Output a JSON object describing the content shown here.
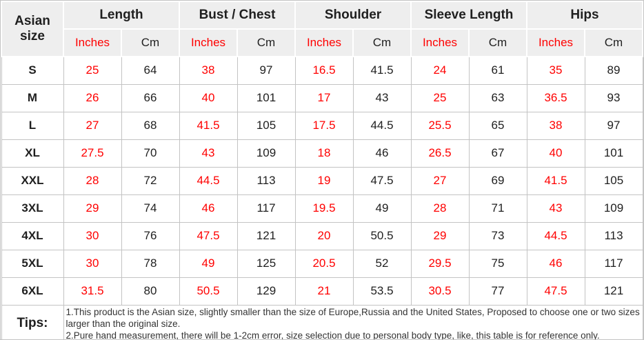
{
  "chart_data": {
    "type": "table",
    "corner_header": "Asian size",
    "column_groups": [
      "Length",
      "Bust / Chest",
      "Shoulder",
      "Sleeve Length",
      "Hips"
    ],
    "unit_labels": [
      "Inches",
      "Cm"
    ],
    "rows": [
      {
        "size": "S",
        "values": [
          25,
          64,
          38,
          97,
          16.5,
          41.5,
          24,
          61,
          35,
          89
        ]
      },
      {
        "size": "M",
        "values": [
          26,
          66,
          40,
          101,
          17,
          43,
          25,
          63,
          36.5,
          93
        ]
      },
      {
        "size": "L",
        "values": [
          27,
          68,
          41.5,
          105,
          17.5,
          44.5,
          25.5,
          65,
          38,
          97
        ]
      },
      {
        "size": "XL",
        "values": [
          27.5,
          70,
          43,
          109,
          18,
          46,
          26.5,
          67,
          40,
          101
        ]
      },
      {
        "size": "XXL",
        "values": [
          28,
          72,
          44.5,
          113,
          19,
          47.5,
          27,
          69,
          41.5,
          105
        ]
      },
      {
        "size": "3XL",
        "values": [
          29,
          74,
          46,
          117,
          19.5,
          49,
          28,
          71,
          43,
          109
        ]
      },
      {
        "size": "4XL",
        "values": [
          30,
          76,
          47.5,
          121,
          20,
          50.5,
          29,
          73,
          44.5,
          113
        ]
      },
      {
        "size": "5XL",
        "values": [
          30,
          78,
          49,
          125,
          20.5,
          52,
          29.5,
          75,
          46,
          117
        ]
      },
      {
        "size": "6XL",
        "values": [
          31.5,
          80,
          50.5,
          129,
          21,
          53.5,
          30.5,
          77,
          47.5,
          121
        ]
      }
    ],
    "tips": {
      "label": "Tips:",
      "notes": [
        "1.This product is the Asian size, slightly smaller than the size of Europe,Russia and the United States, Proposed to choose one or two sizes larger than the original size.",
        "2.Pure hand measurement, there will be 1-2cm error, size selection due to personal body type, like, this table is for reference only."
      ]
    }
  },
  "colors": {
    "accent_red": "#ff0000",
    "header_bg": "#eeeeee",
    "border": "#c3c3c3",
    "text": "#1f1f1f"
  }
}
